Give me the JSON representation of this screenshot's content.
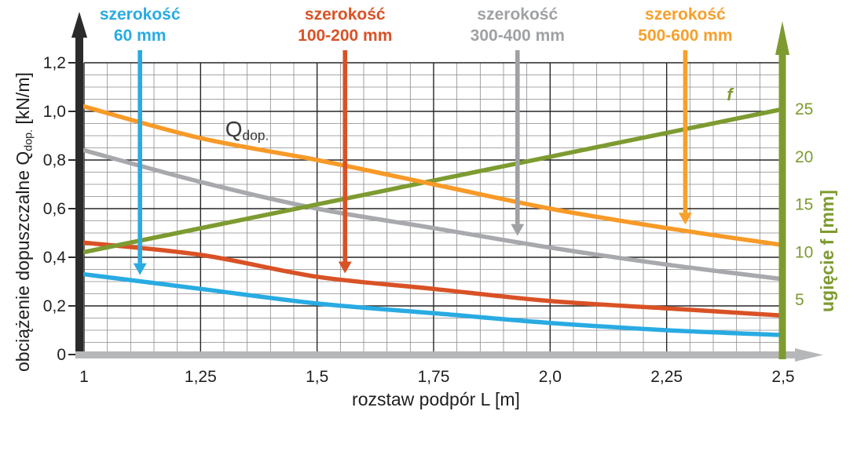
{
  "chart_data": {
    "type": "line",
    "title": "",
    "xlabel": "rozstaw podpór L [m]",
    "x_axis": {
      "ticks": [
        {
          "v": 1.0,
          "label": "1"
        },
        {
          "v": 1.25,
          "label": "1,25"
        },
        {
          "v": 1.5,
          "label": "1,5"
        },
        {
          "v": 1.75,
          "label": "1,75"
        },
        {
          "v": 2.0,
          "label": "2,0"
        },
        {
          "v": 2.25,
          "label": "2,25"
        },
        {
          "v": 2.5,
          "label": "2,5"
        }
      ],
      "range": [
        1.0,
        2.5
      ],
      "minor_step": 0.05,
      "baseline_color": "#b5b7b9",
      "tick_color": "#1f1f1f"
    },
    "y_axis_left": {
      "title_prefix": "obciążenie dopuszczalne Q",
      "title_sub": "dop.",
      "title_suffix": " [kN/m]",
      "ticks": [
        {
          "v": 0.0,
          "label": "0"
        },
        {
          "v": 0.2,
          "label": "0,2"
        },
        {
          "v": 0.4,
          "label": "0,4"
        },
        {
          "v": 0.6,
          "label": "0,6"
        },
        {
          "v": 0.8,
          "label": "0,8"
        },
        {
          "v": 1.0,
          "label": "1,0"
        },
        {
          "v": 1.2,
          "label": "1,2"
        }
      ],
      "range": [
        0,
        1.2
      ],
      "minor_step": 0.05,
      "axis_color": "#2b2b2b"
    },
    "y_axis_right": {
      "title": "ugięcie f [mm]",
      "ticks": [
        {
          "v": 5,
          "label": "5"
        },
        {
          "v": 10,
          "label": "10"
        },
        {
          "v": 15,
          "label": "15"
        },
        {
          "v": 20,
          "label": "20"
        },
        {
          "v": 25,
          "label": "25"
        }
      ],
      "range": [
        0,
        25
      ],
      "axis_color": "#7d9b30"
    },
    "x": [
      1.0,
      1.25,
      1.5,
      1.75,
      2.0,
      2.25,
      2.5
    ],
    "series": [
      {
        "name": "szerokość 60 mm",
        "axis": "left",
        "color": "#29abe2",
        "values": [
          0.33,
          0.27,
          0.21,
          0.17,
          0.13,
          0.1,
          0.08
        ]
      },
      {
        "name": "szerokość 100-200 mm",
        "axis": "left",
        "color": "#d95226",
        "values": [
          0.46,
          0.41,
          0.32,
          0.27,
          0.22,
          0.19,
          0.16
        ]
      },
      {
        "name": "szerokość 300-400 mm",
        "axis": "left",
        "color": "#a7a9ac",
        "values": [
          0.84,
          0.71,
          0.6,
          0.52,
          0.44,
          0.37,
          0.31
        ]
      },
      {
        "name": "f",
        "axis": "right",
        "color": "#7d9b30",
        "values": [
          10,
          12.5,
          15,
          17.5,
          20,
          22.5,
          25
        ]
      },
      {
        "name": "szerokość 500-600 mm",
        "axis": "left",
        "color": "#f79a28",
        "values": [
          1.02,
          0.89,
          0.8,
          0.7,
          0.6,
          0.52,
          0.45
        ]
      }
    ],
    "annotations": [
      {
        "line1": "szerokość",
        "line2": "60 mm",
        "color": "#29abe2",
        "arrow_L": 1.12,
        "series": 0
      },
      {
        "line1": "szerokość",
        "line2": "100-200 mm",
        "color": "#d95226",
        "arrow_L": 1.56,
        "series": 1
      },
      {
        "line1": "szerokość",
        "line2": "300-400 mm",
        "color": "#9fa1a4",
        "arrow_L": 1.93,
        "series": 2
      },
      {
        "line1": "szerokość",
        "line2": "500-600 mm",
        "color": "#f7a02b",
        "arrow_L": 2.29,
        "series": 4
      }
    ],
    "in_plot_labels": {
      "qdop": {
        "text_main": "Q",
        "text_sub": "dop.",
        "L": 1.303,
        "q": 0.9
      },
      "f": {
        "text": "f",
        "color": "#7d9b30",
        "L": 2.379,
        "q": 1.032
      }
    },
    "grid": {
      "minor_color": "#8a8a8a",
      "major_color": "#262626",
      "grid_on": true
    },
    "legend_position": "top-annotations"
  }
}
